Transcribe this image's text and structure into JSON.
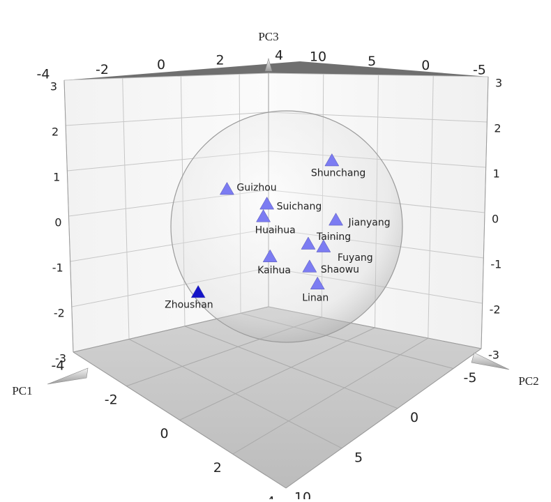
{
  "chart_data": {
    "type": "scatter3d",
    "x_label": "PC1",
    "y_label": "PC2",
    "z_label": "PC3",
    "xlim": [
      -4,
      4
    ],
    "ylim": [
      -7.5,
      10
    ],
    "zlim": [
      -3,
      3
    ],
    "xticks": [
      -4,
      -2,
      0,
      2,
      4
    ],
    "yticks": [
      -5,
      0,
      5,
      10
    ],
    "zticks": [
      -3,
      -2,
      -1,
      0,
      1,
      2,
      3
    ],
    "grid": true,
    "points": [
      {
        "label": "Shunchang",
        "pc1": 0.95,
        "pc2": -1.09,
        "pc3": 1.23,
        "color": "#7c7cf2"
      },
      {
        "label": "Guizhou",
        "pc1": -0.94,
        "pc2": 3.56,
        "pc3": 0.69,
        "color": "#7c7cf2"
      },
      {
        "label": "Suichang",
        "pc1": -0.22,
        "pc2": 1.78,
        "pc3": 0.39,
        "color": "#7c7cf2"
      },
      {
        "label": "Huaihua",
        "pc1": -0.28,
        "pc2": 1.94,
        "pc3": 0.14,
        "color": "#7c7cf2"
      },
      {
        "label": "Jianyang",
        "pc1": 1.04,
        "pc2": -1.31,
        "pc3": 0.03,
        "color": "#7c7cf2"
      },
      {
        "label": "Taining",
        "pc1": 0.54,
        "pc2": -0.09,
        "pc3": -0.43,
        "color": "#7c7cf2"
      },
      {
        "label": "Fuyang",
        "pc1": 0.82,
        "pc2": -0.78,
        "pc3": -0.5,
        "color": "#7c7cf2"
      },
      {
        "label": "Kaihua",
        "pc1": -0.15,
        "pc2": 1.63,
        "pc3": -0.66,
        "color": "#7c7cf2"
      },
      {
        "label": "Shaowu",
        "pc1": 0.57,
        "pc2": -0.16,
        "pc3": -0.89,
        "color": "#7c7cf2"
      },
      {
        "label": "Linan",
        "pc1": 0.72,
        "pc2": -0.53,
        "pc3": -1.24,
        "color": "#7c7cf2"
      },
      {
        "label": "Zhoushan",
        "pc1": -1.46,
        "pc2": 4.84,
        "pc3": -1.38,
        "color": "#1515c8"
      }
    ]
  }
}
